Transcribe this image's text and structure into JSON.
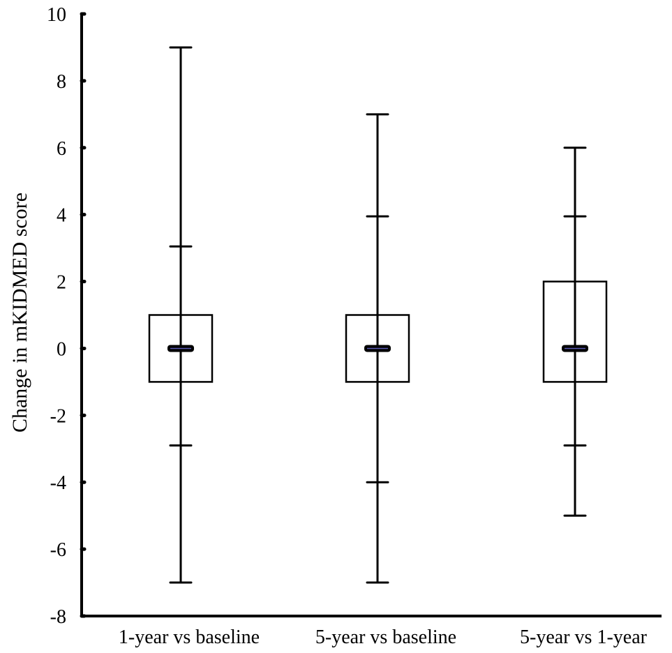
{
  "chart_data": {
    "type": "box",
    "title": "",
    "ylabel": "Change in mKIDMED score",
    "xlabel": "",
    "ylim": [
      -8,
      10
    ],
    "yticks": [
      -8,
      -6,
      -4,
      -2,
      0,
      2,
      4,
      6,
      8,
      10
    ],
    "ytick_labels": [
      "-8",
      "-6",
      "-4",
      "-2",
      "0",
      "2",
      "4",
      "6",
      "8",
      "10"
    ],
    "grid": false,
    "categories": [
      "1-year vs baseline",
      "5-year vs baseline",
      "5-year vs 1-year"
    ],
    "boxes": [
      {
        "min": -7,
        "p5": -2.9,
        "q1": -1,
        "median": 0,
        "q3": 1,
        "p95": 3.05,
        "max": 9
      },
      {
        "min": -7,
        "p5": -4,
        "q1": -1,
        "median": 0,
        "q3": 1,
        "p95": 3.95,
        "max": 7
      },
      {
        "min": -5,
        "p5": -2.9,
        "q1": -1,
        "median": 0,
        "q3": 2,
        "p95": 3.95,
        "max": 6
      }
    ]
  }
}
